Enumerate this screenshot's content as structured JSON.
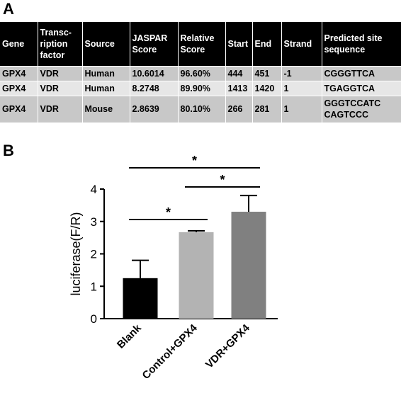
{
  "panel_a_label": "A",
  "panel_b_label": "B",
  "table": {
    "headers": [
      "Gene",
      "Transc-ription factor",
      "Source",
      "JASPAR Score",
      "Relative Score",
      "Start",
      "End",
      "Strand",
      "Predicted site sequence"
    ],
    "rows": [
      [
        "GPX4",
        "VDR",
        "Human",
        "10.6014",
        "96.60%",
        "444",
        "451",
        "-1",
        "CGGGTTCA"
      ],
      [
        "GPX4",
        "VDR",
        "Human",
        "8.2748",
        "89.90%",
        "1413",
        "1420",
        "1",
        "TGAGGTCA"
      ],
      [
        "GPX4",
        "VDR",
        "Mouse",
        "2.8639",
        "80.10%",
        "266",
        "281",
        "1",
        "GGGTCCATC CAGTCCC"
      ]
    ]
  },
  "chart_data": {
    "type": "bar",
    "categories": [
      "Blank",
      "Control+GPX4",
      "VDR+GPX4"
    ],
    "values": [
      1.25,
      2.67,
      3.3
    ],
    "errors": [
      0.55,
      0.04,
      0.5
    ],
    "ylabel": "luciferase(F/R)",
    "ylim": [
      0,
      4
    ],
    "yticks": [
      0,
      1,
      2,
      3,
      4
    ],
    "bar_colors": [
      "#000000",
      "#b3b3b3",
      "#808080"
    ],
    "significance": [
      {
        "from": 0,
        "to": 1,
        "label": "*"
      },
      {
        "from": 1,
        "to": 2,
        "label": "*"
      },
      {
        "from": 0,
        "to": 2,
        "label": "*"
      }
    ]
  }
}
